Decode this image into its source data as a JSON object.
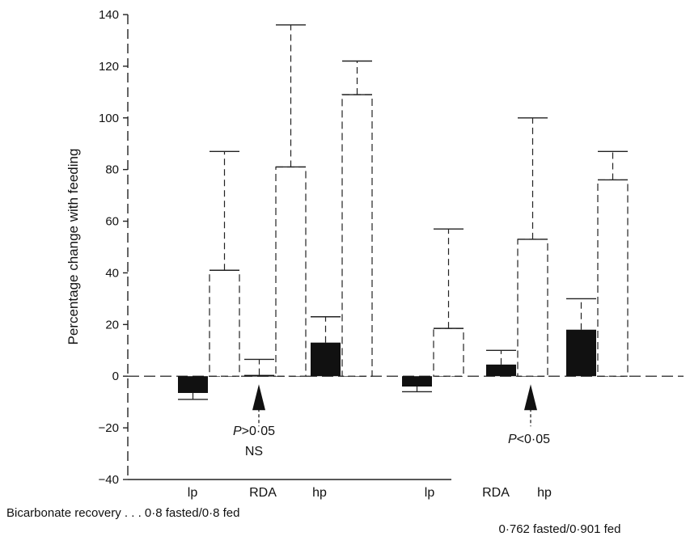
{
  "chart_data": {
    "type": "bar",
    "ylabel": "Percentage change with feeding",
    "ylim": [
      -40,
      140
    ],
    "yticks": [
      -40,
      -20,
      0,
      20,
      40,
      60,
      80,
      100,
      120,
      140
    ],
    "groups": [
      {
        "categories": [
          "lp",
          "RDA",
          "hp"
        ],
        "series": [
          {
            "values": [
              -6.5,
              0.5,
              13
            ],
            "error_bars": [
              -9,
              6.5,
              23
            ],
            "style": "solid"
          },
          {
            "values": [
              41,
              81,
              109
            ],
            "error_bars": [
              87,
              136,
              122
            ],
            "style": "hollow-dashed"
          }
        ],
        "annotation": {
          "p_value": "P>0·05",
          "note": "NS",
          "arrow_at": "RDA"
        },
        "recovery_prefix": "Bicarbonate recovery . . .",
        "recovery_text": "0·8 fasted/0·8 fed"
      },
      {
        "categories": [
          "lp",
          "RDA",
          "hp"
        ],
        "series": [
          {
            "values": [
              -4,
              4.5,
              18
            ],
            "error_bars": [
              -6,
              10,
              30
            ],
            "style": "solid"
          },
          {
            "values": [
              18.5,
              53,
              76
            ],
            "error_bars": [
              57,
              100,
              87
            ],
            "style": "hollow-dashed"
          }
        ],
        "annotation": {
          "p_value": "P<0·05",
          "note": "",
          "arrow_at": "RDA"
        },
        "recovery_prefix": "",
        "recovery_text": "0·762 fasted/0·901 fed"
      }
    ],
    "colors": {
      "solid": "#111111",
      "hollow": "#ffffff",
      "axis": "#222222"
    }
  }
}
